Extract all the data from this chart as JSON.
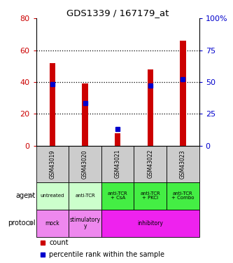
{
  "title": "GDS1339 / 167179_at",
  "samples": [
    "GSM43019",
    "GSM43020",
    "GSM43021",
    "GSM43022",
    "GSM43023"
  ],
  "count_values": [
    52,
    39,
    8,
    48,
    66
  ],
  "percentile_values": [
    48.5,
    33.5,
    13,
    47.5,
    52
  ],
  "count_color": "#cc0000",
  "percentile_color": "#0000cc",
  "left_ylim": [
    0,
    80
  ],
  "right_ylim": [
    0,
    100
  ],
  "left_yticks": [
    0,
    20,
    40,
    60,
    80
  ],
  "right_yticks": [
    0,
    25,
    50,
    75,
    100
  ],
  "right_yticklabels": [
    "0",
    "25",
    "50",
    "75",
    "100%"
  ],
  "agent_labels": [
    "untreated",
    "anti-TCR",
    "anti-TCR\n+ CsA",
    "anti-TCR\n+ PKCi",
    "anti-TCR\n+ Combo"
  ],
  "agent_colors": [
    "#ccffcc",
    "#ccffcc",
    "#44ee44",
    "#44ee44",
    "#44ee44"
  ],
  "protocol_data": [
    {
      "label": "mock",
      "span": 1,
      "color": "#ee88ee"
    },
    {
      "label": "stimulatory\ny",
      "span": 1,
      "color": "#ee88ee"
    },
    {
      "label": "inhibitory",
      "span": 3,
      "color": "#ee22ee"
    }
  ],
  "sample_bg": "#cccccc",
  "dotted_levels": [
    20,
    40,
    60
  ],
  "bar_width": 0.18,
  "legend_count_label": "count",
  "legend_percentile_label": "percentile rank within the sample"
}
